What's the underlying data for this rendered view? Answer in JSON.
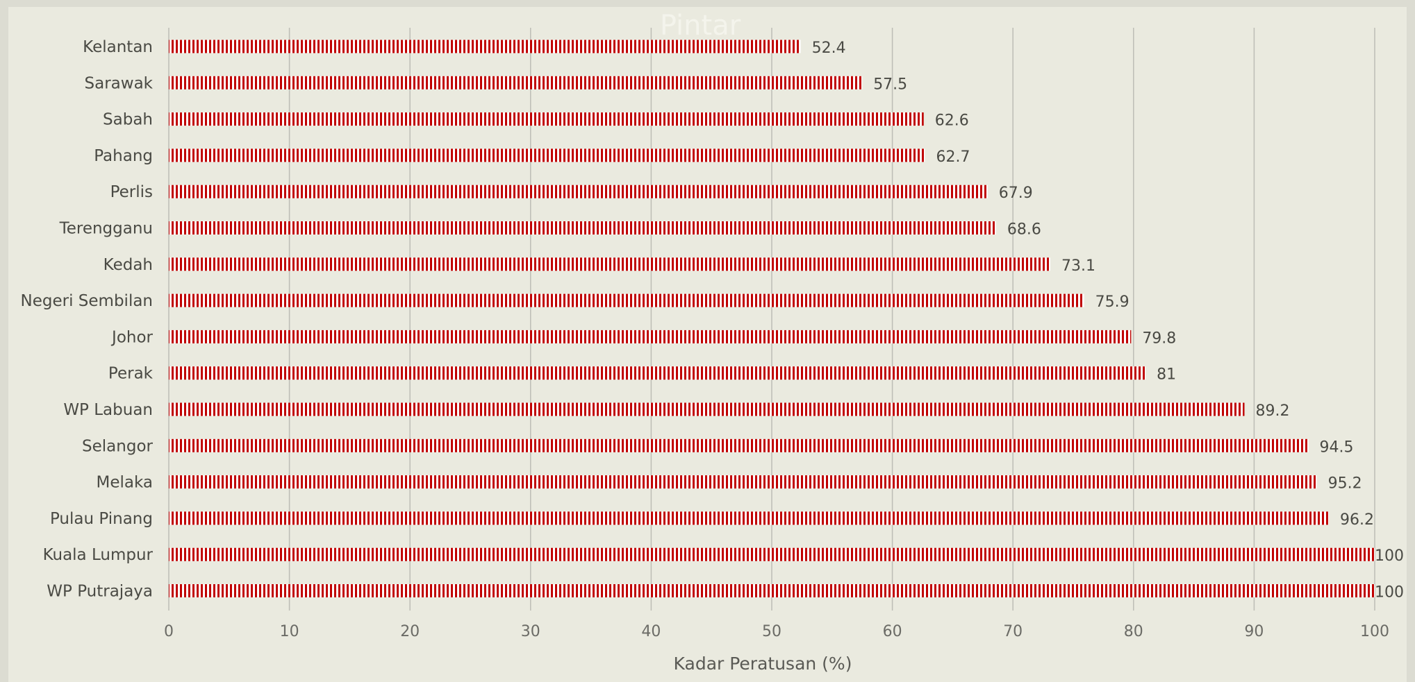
{
  "chart_data": {
    "type": "bar",
    "orientation": "horizontal",
    "xlabel": "Kadar Peratusan (%)",
    "xlim": [
      0,
      100
    ],
    "xticks": [
      "0",
      "10",
      "20",
      "30",
      "40",
      "50",
      "60",
      "70",
      "80",
      "90",
      "100"
    ],
    "grid": true,
    "background_text": "Pintar",
    "colors": {
      "bar": "#c00000",
      "bar_gap": "#ffffff",
      "grid": "#bdbdb6",
      "text": "#4a4a44"
    },
    "categories": [
      "Kelantan",
      "Sarawak",
      "Sabah",
      "Pahang",
      "Perlis",
      "Terengganu",
      "Kedah",
      "Negeri Sembilan",
      "Johor",
      "Perak",
      "WP Labuan",
      "Selangor",
      "Melaka",
      "Pulau Pinang",
      "Kuala Lumpur",
      "WP Putrajaya"
    ],
    "values": [
      52.4,
      57.5,
      62.6,
      62.7,
      67.9,
      68.6,
      73.1,
      75.9,
      79.8,
      81,
      89.2,
      94.5,
      95.2,
      96.2,
      100,
      100
    ],
    "value_labels": [
      "52.4",
      "57.5",
      "62.6",
      "62.7",
      "67.9",
      "68.6",
      "73.1",
      "75.9",
      "79.8",
      "81",
      "89.2",
      "94.5",
      "95.2",
      "96.2",
      "100",
      "100"
    ]
  }
}
